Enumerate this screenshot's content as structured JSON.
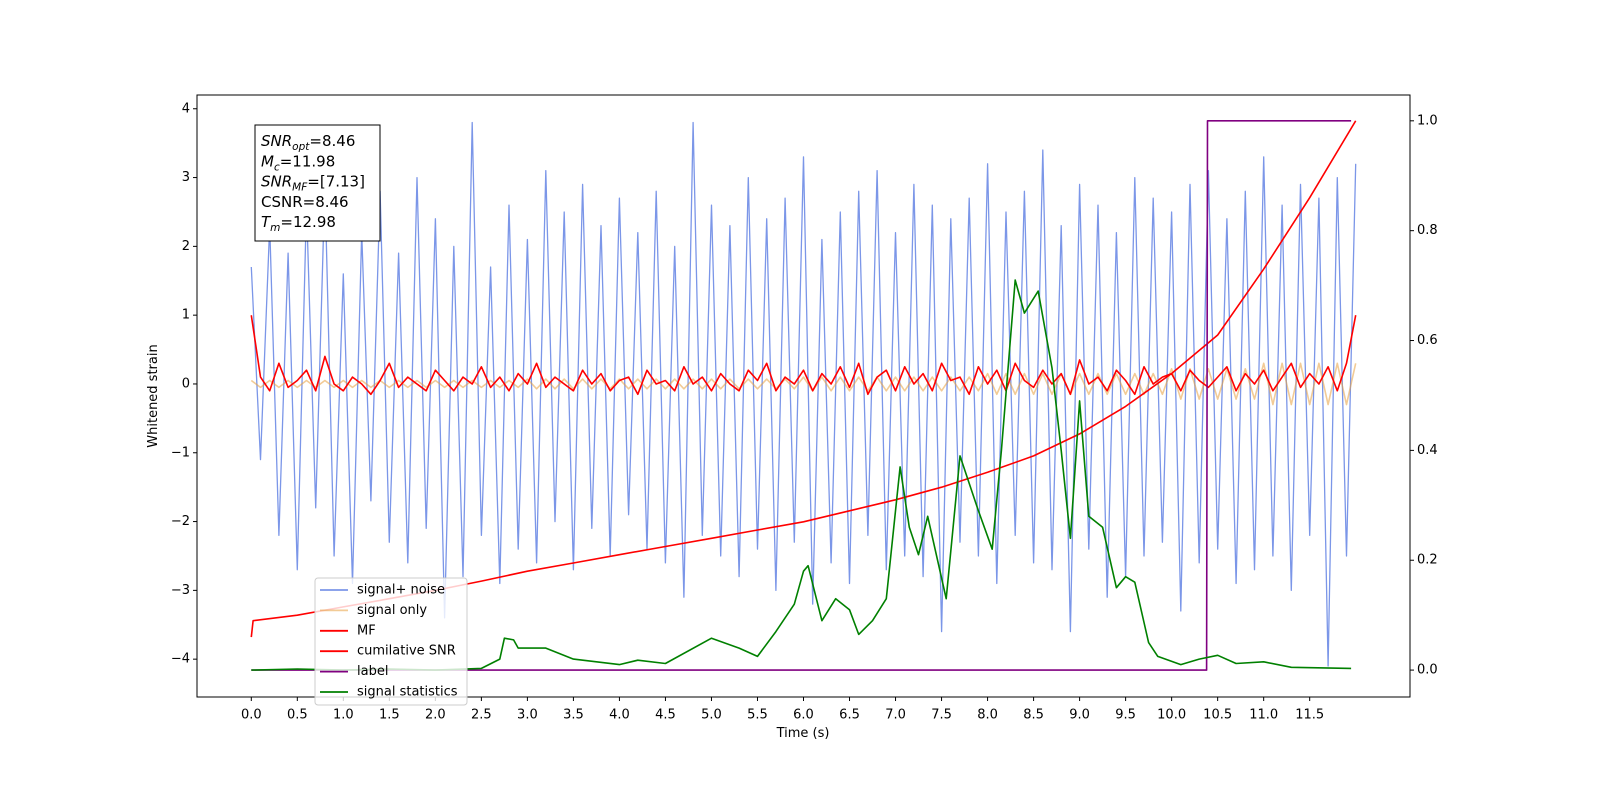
{
  "chart_data": {
    "type": "line",
    "xlabel": "Time (s)",
    "ylabel": "Whitened strain",
    "annotations": [
      {
        "text": "SNR",
        "sub": "opt",
        "after": "=8.46"
      },
      {
        "text": "M",
        "sub": "c",
        "after": "=11.98"
      },
      {
        "text": "SNR",
        "sub": "MF",
        "after": "=[7.13]"
      },
      {
        "text": "CSNR=8.46"
      },
      {
        "text": "T",
        "sub": "m",
        "after": "=12.98"
      }
    ],
    "xlim": [
      -0.59,
      12.59
    ],
    "xticks": [
      {
        "value": 0,
        "label": "0.0"
      },
      0.5,
      {
        "value": 1,
        "label": "1.0"
      },
      1.5,
      {
        "value": 2,
        "label": "2.0"
      },
      2.5,
      {
        "value": 3,
        "label": "3.0"
      },
      3.5,
      {
        "value": 4,
        "label": "4.0"
      },
      4.5,
      {
        "value": 5,
        "label": "5.0"
      },
      5.5,
      {
        "value": 6,
        "label": "6.0"
      },
      6.5,
      {
        "value": 7,
        "label": "7.0"
      },
      7.5,
      {
        "value": 8,
        "label": "8.0"
      },
      8.5,
      {
        "value": 9,
        "label": "9.0"
      },
      9.5,
      {
        "value": 10,
        "label": "10.0"
      },
      10.5,
      {
        "value": 11,
        "label": "11.0"
      },
      11.5
    ],
    "ylim": [
      -4.55,
      4.2
    ],
    "yticks": [
      {
        "value": -4,
        "label": "−4"
      },
      {
        "value": -3,
        "label": "−3"
      },
      {
        "value": -2,
        "label": "−2"
      },
      {
        "value": -1,
        "label": "−1"
      },
      0,
      1,
      2,
      3,
      4
    ],
    "y2lim": [
      -0.049,
      1.047
    ],
    "y2ticks": [
      {
        "value": 0,
        "label": "0.0"
      },
      {
        "value": 0.2,
        "label": "0.2"
      },
      {
        "value": 0.4,
        "label": "0.4"
      },
      {
        "value": 0.6,
        "label": "0.6"
      },
      {
        "value": 0.8,
        "label": "0.8"
      },
      {
        "value": 1,
        "label": "1.0"
      }
    ],
    "legend": "lower left",
    "x": [
      0,
      0.1,
      0.2,
      0.3,
      0.4,
      0.5,
      0.6,
      0.7,
      0.8,
      0.9,
      1,
      1.1,
      1.2,
      1.3,
      1.4,
      1.5,
      1.6,
      1.7,
      1.8,
      1.9,
      2,
      2.1,
      2.2,
      2.3,
      2.4,
      2.5,
      2.6,
      2.7,
      2.8,
      2.9,
      3,
      3.1,
      3.2,
      3.3,
      3.4,
      3.5,
      3.6,
      3.7,
      3.8,
      3.9,
      4,
      4.1,
      4.2,
      4.3,
      4.4,
      4.5,
      4.6,
      4.7,
      4.8,
      4.9,
      5,
      5.1,
      5.2,
      5.3,
      5.4,
      5.5,
      5.6,
      5.7,
      5.8,
      5.9,
      6,
      6.1,
      6.2,
      6.3,
      6.4,
      6.5,
      6.6,
      6.7,
      6.8,
      6.9,
      7,
      7.1,
      7.2,
      7.3,
      7.4,
      7.5,
      7.6,
      7.7,
      7.8,
      7.9,
      8,
      8.1,
      8.2,
      8.3,
      8.4,
      8.5,
      8.6,
      8.7,
      8.8,
      8.9,
      9,
      9.1,
      9.2,
      9.3,
      9.4,
      9.5,
      9.6,
      9.7,
      9.8,
      9.9,
      10,
      10.1,
      10.2,
      10.3,
      10.4,
      10.5,
      10.6,
      10.7,
      10.8,
      10.9,
      11,
      11.1,
      11.2,
      11.3,
      11.4,
      11.5,
      11.6,
      11.7,
      11.8,
      11.9,
      12
    ],
    "series": [
      {
        "name": "signal+ noise",
        "color": "#7b96e8",
        "values": [
          1.7,
          -1.1,
          2.3,
          -2.2,
          1.9,
          -2.7,
          2.6,
          -1.8,
          2.9,
          -2.5,
          1.6,
          -2.9,
          2.2,
          -1.7,
          2.8,
          -2.3,
          1.9,
          -2.6,
          3.0,
          -2.1,
          2.4,
          -3.4,
          2.0,
          -2.8,
          3.8,
          -2.2,
          1.7,
          -2.9,
          2.6,
          -2.4,
          2.1,
          -2.6,
          3.1,
          -2.0,
          2.5,
          -2.7,
          2.9,
          -2.1,
          2.3,
          -2.5,
          2.7,
          -1.9,
          2.2,
          -2.4,
          2.8,
          -2.6,
          2.0,
          -3.1,
          3.8,
          -2.2,
          2.6,
          -2.5,
          2.3,
          -2.8,
          3.0,
          -2.4,
          2.4,
          -3.0,
          2.7,
          -2.3,
          3.3,
          -3.2,
          2.1,
          -2.6,
          2.5,
          -2.9,
          2.8,
          -2.2,
          3.1,
          -2.7,
          2.2,
          -2.5,
          2.9,
          -2.8,
          2.6,
          -3.6,
          2.4,
          -2.3,
          2.7,
          -2.5,
          3.2,
          -2.9,
          2.5,
          -2.2,
          2.8,
          -2.6,
          3.4,
          -2.7,
          2.3,
          -3.6,
          2.9,
          -2.4,
          2.6,
          -3.1,
          2.2,
          -2.8,
          3.0,
          -2.5,
          2.7,
          -2.3,
          2.5,
          -3.3,
          2.9,
          -2.6,
          3.1,
          -2.4,
          2.4,
          -2.9,
          2.8,
          -2.7,
          3.3,
          -2.5,
          2.6,
          -3.0,
          2.9,
          -2.2,
          2.7,
          -4.1,
          3.0,
          -2.5,
          3.2
        ]
      },
      {
        "name": "signal only",
        "color": "#e8a040",
        "values": [
          0.05,
          -0.05,
          0.05,
          -0.05,
          0.05,
          -0.05,
          0.05,
          -0.05,
          0.05,
          -0.05,
          0.05,
          -0.05,
          0.05,
          -0.05,
          0.05,
          -0.05,
          0.05,
          -0.05,
          0.05,
          -0.05,
          0.05,
          -0.05,
          0.05,
          -0.05,
          0.05,
          -0.05,
          0.05,
          -0.05,
          0.05,
          -0.05,
          0.07,
          -0.07,
          0.07,
          -0.07,
          0.07,
          -0.07,
          0.07,
          -0.07,
          0.07,
          -0.07,
          0.07,
          -0.07,
          0.07,
          -0.07,
          0.07,
          -0.07,
          0.07,
          -0.07,
          0.07,
          -0.07,
          0.07,
          -0.07,
          0.07,
          -0.07,
          0.07,
          -0.07,
          0.07,
          -0.07,
          0.07,
          -0.07,
          0.1,
          -0.1,
          0.1,
          -0.1,
          0.1,
          -0.1,
          0.1,
          -0.1,
          0.1,
          -0.1,
          0.1,
          -0.1,
          0.1,
          -0.1,
          0.1,
          -0.1,
          0.1,
          -0.1,
          0.1,
          -0.1,
          0.15,
          -0.15,
          0.15,
          -0.15,
          0.15,
          -0.15,
          0.15,
          -0.15,
          0.15,
          -0.15,
          0.15,
          -0.15,
          0.15,
          -0.15,
          0.15,
          -0.15,
          0.15,
          -0.15,
          0.15,
          -0.15,
          0.22,
          -0.22,
          0.22,
          -0.22,
          0.22,
          -0.22,
          0.22,
          -0.22,
          0.22,
          -0.22,
          0.3,
          -0.3,
          0.3,
          -0.3,
          0.3,
          -0.3,
          0.3,
          -0.3,
          0.3,
          -0.3,
          0.3
        ]
      },
      {
        "name": "MF",
        "color": "#ff0000",
        "values": [
          1.0,
          0.1,
          -0.1,
          0.3,
          -0.05,
          0.05,
          0.2,
          -0.1,
          0.4,
          0.0,
          -0.1,
          0.1,
          0.0,
          -0.15,
          0.05,
          0.3,
          -0.05,
          0.1,
          0.0,
          -0.1,
          0.2,
          0.05,
          -0.1,
          0.1,
          0.0,
          0.25,
          -0.05,
          0.1,
          -0.1,
          0.15,
          0.0,
          0.3,
          -0.05,
          0.1,
          0.0,
          -0.1,
          0.2,
          0.0,
          0.15,
          -0.1,
          0.05,
          0.1,
          -0.15,
          0.2,
          0.0,
          0.05,
          -0.1,
          0.25,
          0.0,
          0.1,
          -0.1,
          0.15,
          0.0,
          -0.1,
          0.2,
          0.05,
          0.3,
          -0.1,
          0.1,
          0.0,
          0.2,
          -0.1,
          0.15,
          0.0,
          0.25,
          -0.05,
          0.3,
          -0.15,
          0.1,
          0.2,
          -0.1,
          0.25,
          0.0,
          0.15,
          -0.1,
          0.3,
          0.05,
          0.1,
          -0.15,
          0.25,
          0.0,
          0.2,
          -0.1,
          0.3,
          0.05,
          -0.05,
          0.2,
          0.0,
          0.15,
          -0.15,
          0.35,
          0.0,
          0.1,
          -0.1,
          0.2,
          0.05,
          -0.15,
          0.25,
          0.0,
          0.1,
          0.15,
          -0.1,
          0.2,
          0.05,
          -0.05,
          0.1,
          0.25,
          -0.1,
          0.15,
          0.0,
          0.2,
          -0.1,
          0.1,
          0.3,
          -0.05,
          0.15,
          0.0,
          0.25,
          -0.1,
          0.3,
          1.0
        ]
      },
      {
        "name": "cumilative SNR",
        "color": "#ff0000",
        "axis": "y2",
        "x": [
          0,
          0.02,
          0.5,
          1,
          1.5,
          2,
          2.5,
          3,
          3.5,
          4,
          4.5,
          5,
          5.5,
          6,
          6.5,
          7,
          7.5,
          8,
          8.5,
          9,
          9.5,
          10,
          10.5,
          11,
          11.5,
          12
        ],
        "values": [
          0.06,
          0.09,
          0.1,
          0.115,
          0.13,
          0.145,
          0.162,
          0.18,
          0.195,
          0.21,
          0.225,
          0.24,
          0.255,
          0.27,
          0.29,
          0.31,
          0.333,
          0.36,
          0.39,
          0.43,
          0.48,
          0.54,
          0.61,
          0.73,
          0.86,
          1.0
        ]
      },
      {
        "name": "label",
        "color": "#800080",
        "axis": "y2",
        "x": [
          0,
          10.38,
          10.39,
          11.95
        ],
        "values": [
          0,
          0,
          1,
          1
        ]
      },
      {
        "name": "signal statistics",
        "color": "#008000",
        "axis": "y2",
        "x": [
          0,
          0.5,
          1,
          1.5,
          2,
          2.5,
          2.7,
          2.75,
          2.85,
          2.9,
          3.2,
          3.5,
          4,
          4.2,
          4.5,
          5,
          5.3,
          5.5,
          5.7,
          5.9,
          6.0,
          6.05,
          6.2,
          6.35,
          6.5,
          6.6,
          6.75,
          6.9,
          7.05,
          7.15,
          7.25,
          7.35,
          7.55,
          7.7,
          7.9,
          8.05,
          8.15,
          8.3,
          8.4,
          8.55,
          8.7,
          8.8,
          8.9,
          9.0,
          9.1,
          9.25,
          9.4,
          9.5,
          9.6,
          9.75,
          9.85,
          10.1,
          10.3,
          10.5,
          10.7,
          11,
          11.3,
          11.95
        ],
        "values": [
          0,
          0.002,
          0,
          0.002,
          0,
          0.003,
          0.02,
          0.058,
          0.055,
          0.04,
          0.04,
          0.02,
          0.01,
          0.018,
          0.012,
          0.058,
          0.04,
          0.025,
          0.07,
          0.12,
          0.18,
          0.19,
          0.09,
          0.13,
          0.11,
          0.065,
          0.09,
          0.13,
          0.37,
          0.26,
          0.21,
          0.28,
          0.13,
          0.39,
          0.29,
          0.22,
          0.4,
          0.71,
          0.65,
          0.69,
          0.55,
          0.4,
          0.24,
          0.49,
          0.28,
          0.26,
          0.15,
          0.17,
          0.16,
          0.05,
          0.025,
          0.01,
          0.02,
          0.027,
          0.012,
          0.015,
          0.005,
          0.003
        ]
      }
    ]
  }
}
